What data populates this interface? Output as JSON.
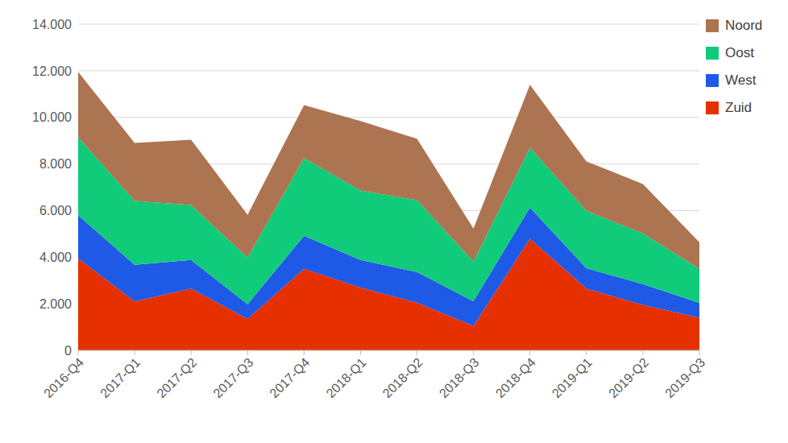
{
  "chart_data": {
    "type": "area",
    "stacked": true,
    "grid": true,
    "legend": "right",
    "categories": [
      "2016-Q4",
      "2017-Q1",
      "2017-Q2",
      "2017-Q3",
      "2017-Q4",
      "2018-Q1",
      "2018-Q2",
      "2018-Q3",
      "2018-Q4",
      "2019-Q1",
      "2019-Q2",
      "2019-Q3"
    ],
    "series": [
      {
        "name": "Zuid",
        "color": "#e63000",
        "values": [
          3950,
          2100,
          2650,
          1350,
          3500,
          2700,
          2050,
          1050,
          4800,
          2650,
          1950,
          1400
        ]
      },
      {
        "name": "West",
        "color": "#1f5ae6",
        "values": [
          1850,
          1570,
          1230,
          630,
          1420,
          1180,
          1310,
          1060,
          1330,
          880,
          890,
          640
        ]
      },
      {
        "name": "Oost",
        "color": "#10cb7a",
        "values": [
          3350,
          2740,
          2360,
          2000,
          3330,
          2980,
          3090,
          1700,
          2570,
          2460,
          2180,
          1460
        ]
      },
      {
        "name": "Noord",
        "color": "#ac7450",
        "values": [
          2800,
          2490,
          2800,
          1840,
          2280,
          2980,
          2630,
          1420,
          2700,
          2120,
          2120,
          1140
        ]
      }
    ],
    "ylim": [
      0,
      14000
    ],
    "yticks": [
      0,
      {
        "value": 2000,
        "label": "2.000"
      },
      {
        "value": 4000,
        "label": "4.000"
      },
      {
        "value": 6000,
        "label": "6.000"
      },
      {
        "value": 8000,
        "label": "8.000"
      },
      {
        "value": 10000,
        "label": "10.000"
      },
      {
        "value": 12000,
        "label": "12.000"
      },
      {
        "value": 14000,
        "label": "14.000"
      }
    ]
  }
}
